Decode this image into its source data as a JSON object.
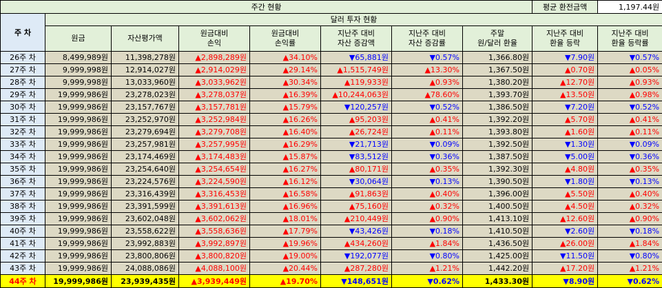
{
  "header": {
    "weekly_status": "주간 현황",
    "avg_rate_label": "평균 환전금액",
    "avg_rate_value": "1,197.44원",
    "dollar_status": "달러 투자 현황",
    "week_col": "주 차"
  },
  "columns": [
    {
      "line1": "원금",
      "line2": ""
    },
    {
      "line1": "자산평가액",
      "line2": ""
    },
    {
      "line1": "원금대비",
      "line2": "손익"
    },
    {
      "line1": "원금대비",
      "line2": "손익률"
    },
    {
      "line1": "지난주 대비",
      "line2": "자산 증감액"
    },
    {
      "line1": "지난주 대비",
      "line2": "자산 증감률"
    },
    {
      "line1": "주말",
      "line2": "원/달러 환율"
    },
    {
      "line1": "지난주 대비",
      "line2": "환율 등락"
    },
    {
      "line1": "지난주 대비",
      "line2": "환율 등락률"
    }
  ],
  "rows": [
    {
      "week": "26주 차",
      "principal": "8,499,989원",
      "asset": "11,398,278원",
      "pl": "2,898,289원",
      "pl_dir": "up",
      "plr": "34.10%",
      "plr_dir": "up",
      "chg": "65,881원",
      "chg_dir": "dn",
      "chgr": "0.57%",
      "chgr_dir": "dn",
      "fx": "1,366.80원",
      "fxd": "7.90원",
      "fxd_dir": "dn",
      "fxr": "0.57%",
      "fxr_dir": "dn"
    },
    {
      "week": "27주 차",
      "principal": "9,999,998원",
      "asset": "12,914,027원",
      "pl": "2,914,029원",
      "pl_dir": "up",
      "plr": "29.14%",
      "plr_dir": "up",
      "chg": "1,515,749원",
      "chg_dir": "up",
      "chgr": "13.30%",
      "chgr_dir": "up",
      "fx": "1,367.50원",
      "fxd": "0.70원",
      "fxd_dir": "up",
      "fxr": "0.05%",
      "fxr_dir": "up"
    },
    {
      "week": "28주 차",
      "principal": "9,999,998원",
      "asset": "13,033,960원",
      "pl": "3,033,962원",
      "pl_dir": "up",
      "plr": "30.34%",
      "plr_dir": "up",
      "chg": "119,933원",
      "chg_dir": "up",
      "chgr": "0.93%",
      "chgr_dir": "up",
      "fx": "1,380.20원",
      "fxd": "12.70원",
      "fxd_dir": "up",
      "fxr": "0.93%",
      "fxr_dir": "up"
    },
    {
      "week": "29주 차",
      "principal": "19,999,986원",
      "asset": "23,278,023원",
      "pl": "3,278,037원",
      "pl_dir": "up",
      "plr": "16.39%",
      "plr_dir": "up",
      "chg": "10,244,063원",
      "chg_dir": "up",
      "chgr": "78.60%",
      "chgr_dir": "up",
      "fx": "1,393.70원",
      "fxd": "13.50원",
      "fxd_dir": "up",
      "fxr": "0.98%",
      "fxr_dir": "up"
    },
    {
      "week": "30주 차",
      "principal": "19,999,986원",
      "asset": "23,157,767원",
      "pl": "3,157,781원",
      "pl_dir": "up",
      "plr": "15.79%",
      "plr_dir": "up",
      "chg": "120,257원",
      "chg_dir": "dn",
      "chgr": "0.52%",
      "chgr_dir": "dn",
      "fx": "1,386.50원",
      "fxd": "7.20원",
      "fxd_dir": "dn",
      "fxr": "0.52%",
      "fxr_dir": "dn"
    },
    {
      "week": "31주 차",
      "principal": "19,999,986원",
      "asset": "23,252,970원",
      "pl": "3,252,984원",
      "pl_dir": "up",
      "plr": "16.26%",
      "plr_dir": "up",
      "chg": "95,203원",
      "chg_dir": "up",
      "chgr": "0.41%",
      "chgr_dir": "up",
      "fx": "1,392.20원",
      "fxd": "5.70원",
      "fxd_dir": "up",
      "fxr": "0.41%",
      "fxr_dir": "up"
    },
    {
      "week": "32주 차",
      "principal": "19,999,986원",
      "asset": "23,279,694원",
      "pl": "3,279,708원",
      "pl_dir": "up",
      "plr": "16.40%",
      "plr_dir": "up",
      "chg": "26,724원",
      "chg_dir": "up",
      "chgr": "0.11%",
      "chgr_dir": "up",
      "fx": "1,393.80원",
      "fxd": "1.60원",
      "fxd_dir": "up",
      "fxr": "0.11%",
      "fxr_dir": "up"
    },
    {
      "week": "33주 차",
      "principal": "19,999,986원",
      "asset": "23,257,981원",
      "pl": "3,257,995원",
      "pl_dir": "up",
      "plr": "16.29%",
      "plr_dir": "up",
      "chg": "21,713원",
      "chg_dir": "dn",
      "chgr": "0.09%",
      "chgr_dir": "dn",
      "fx": "1,392.50원",
      "fxd": "1.30원",
      "fxd_dir": "dn",
      "fxr": "0.09%",
      "fxr_dir": "dn"
    },
    {
      "week": "34주 차",
      "principal": "19,999,986원",
      "asset": "23,174,469원",
      "pl": "3,174,483원",
      "pl_dir": "up",
      "plr": "15.87%",
      "plr_dir": "up",
      "chg": "83,512원",
      "chg_dir": "dn",
      "chgr": "0.36%",
      "chgr_dir": "dn",
      "fx": "1,387.50원",
      "fxd": "5.00원",
      "fxd_dir": "dn",
      "fxr": "0.36%",
      "fxr_dir": "dn"
    },
    {
      "week": "35주 차",
      "principal": "19,999,986원",
      "asset": "23,254,640원",
      "pl": "3,254,654원",
      "pl_dir": "up",
      "plr": "16.27%",
      "plr_dir": "up",
      "chg": "80,171원",
      "chg_dir": "up",
      "chgr": "0.35%",
      "chgr_dir": "up",
      "fx": "1,392.30원",
      "fxd": "4.80원",
      "fxd_dir": "up",
      "fxr": "0.35%",
      "fxr_dir": "up"
    },
    {
      "week": "36주 차",
      "principal": "19,999,986원",
      "asset": "23,224,576원",
      "pl": "3,224,590원",
      "pl_dir": "up",
      "plr": "16.12%",
      "plr_dir": "up",
      "chg": "30,064원",
      "chg_dir": "dn",
      "chgr": "0.13%",
      "chgr_dir": "dn",
      "fx": "1,390.50원",
      "fxd": "1.80원",
      "fxd_dir": "dn",
      "fxr": "0.13%",
      "fxr_dir": "dn"
    },
    {
      "week": "37주 차",
      "principal": "19,999,986원",
      "asset": "23,316,439원",
      "pl": "3,316,453원",
      "pl_dir": "up",
      "plr": "16.58%",
      "plr_dir": "up",
      "chg": "91,863원",
      "chg_dir": "up",
      "chgr": "0.40%",
      "chgr_dir": "up",
      "fx": "1,396.00원",
      "fxd": "5.50원",
      "fxd_dir": "up",
      "fxr": "0.40%",
      "fxr_dir": "up"
    },
    {
      "week": "38주 차",
      "principal": "19,999,986원",
      "asset": "23,391,599원",
      "pl": "3,391,613원",
      "pl_dir": "up",
      "plr": "16.96%",
      "plr_dir": "up",
      "chg": "75,160원",
      "chg_dir": "up",
      "chgr": "0.32%",
      "chgr_dir": "up",
      "fx": "1,400.50원",
      "fxd": "4.50원",
      "fxd_dir": "up",
      "fxr": "0.32%",
      "fxr_dir": "up"
    },
    {
      "week": "39주 차",
      "principal": "19,999,986원",
      "asset": "23,602,048원",
      "pl": "3,602,062원",
      "pl_dir": "up",
      "plr": "18.01%",
      "plr_dir": "up",
      "chg": "210,449원",
      "chg_dir": "up",
      "chgr": "0.90%",
      "chgr_dir": "up",
      "fx": "1,413.10원",
      "fxd": "12.60원",
      "fxd_dir": "up",
      "fxr": "0.90%",
      "fxr_dir": "up"
    },
    {
      "week": "40주 차",
      "principal": "19,999,986원",
      "asset": "23,558,622원",
      "pl": "3,558,636원",
      "pl_dir": "up",
      "plr": "17.79%",
      "plr_dir": "up",
      "chg": "43,426원",
      "chg_dir": "dn",
      "chgr": "0.18%",
      "chgr_dir": "dn",
      "fx": "1,410.50원",
      "fxd": "2.60원",
      "fxd_dir": "dn",
      "fxr": "0.18%",
      "fxr_dir": "dn"
    },
    {
      "week": "41주 차",
      "principal": "19,999,986원",
      "asset": "23,992,883원",
      "pl": "3,992,897원",
      "pl_dir": "up",
      "plr": "19.96%",
      "plr_dir": "up",
      "chg": "434,260원",
      "chg_dir": "up",
      "chgr": "1.84%",
      "chgr_dir": "up",
      "fx": "1,436.50원",
      "fxd": "26.00원",
      "fxd_dir": "up",
      "fxr": "1.84%",
      "fxr_dir": "up"
    },
    {
      "week": "42주 차",
      "principal": "19,999,986원",
      "asset": "23,800,806원",
      "pl": "3,800,820원",
      "pl_dir": "up",
      "plr": "19.00%",
      "plr_dir": "up",
      "chg": "192,077원",
      "chg_dir": "dn",
      "chgr": "0.80%",
      "chgr_dir": "dn",
      "fx": "1,425.00원",
      "fxd": "11.50원",
      "fxd_dir": "dn",
      "fxr": "0.80%",
      "fxr_dir": "dn"
    },
    {
      "week": "43주 차",
      "principal": "19,999,986원",
      "asset": "24,088,086원",
      "pl": "4,088,100원",
      "pl_dir": "up",
      "plr": "20.44%",
      "plr_dir": "up",
      "chg": "287,280원",
      "chg_dir": "up",
      "chgr": "1.21%",
      "chgr_dir": "up",
      "fx": "1,442.20원",
      "fxd": "17.20원",
      "fxd_dir": "up",
      "fxr": "1.21%",
      "fxr_dir": "up"
    }
  ],
  "last_row": {
    "week": "44주 차",
    "principal": "19,999,986원",
    "asset": "23,939,435원",
    "pl": "3,939,449원",
    "pl_dir": "up",
    "plr": "19.70%",
    "plr_dir": "up",
    "chg": "148,651원",
    "chg_dir": "dn",
    "chgr": "0.62%",
    "chgr_dir": "dn",
    "fx": "1,433.30원",
    "fxd": "8.90원",
    "fxd_dir": "dn",
    "fxr": "0.62%",
    "fxr_dir": "dn"
  },
  "colors": {
    "header_bg": "#e2f0d9",
    "week_bg": "#deeaf6",
    "row_bg": "#ddd9c4",
    "highlight": "#ffff00",
    "up": "#ff0000",
    "down": "#0000ff"
  }
}
